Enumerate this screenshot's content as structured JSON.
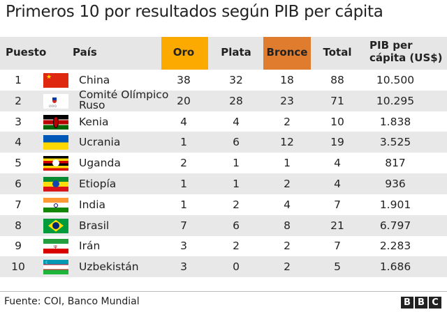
{
  "title": "Primeros 10 por resultados según PIB per cápita",
  "headers": {
    "puesto": "Puesto",
    "pais": "País",
    "oro": "Oro",
    "plata": "Plata",
    "bronce": "Bronce",
    "total": "Total",
    "pib1": "PIB per",
    "pib2": "cápita (US$)"
  },
  "colors": {
    "oro": "#fdaa00",
    "bronce": "#e07c2d"
  },
  "rows": [
    {
      "rank": "1",
      "country": "China",
      "flag": "china-flag",
      "oro": "38",
      "plata": "32",
      "bronce": "18",
      "total": "88",
      "pib": "10.500"
    },
    {
      "rank": "2",
      "country": "Comité Olímpico",
      "country2": "Ruso",
      "flag": "roc-emblem",
      "oro": "20",
      "plata": "28",
      "bronce": "23",
      "total": "71",
      "pib": "10.295"
    },
    {
      "rank": "3",
      "country": "Kenia",
      "flag": "kenya-flag",
      "oro": "4",
      "plata": "4",
      "bronce": "2",
      "total": "10",
      "pib": "1.838"
    },
    {
      "rank": "4",
      "country": "Ucrania",
      "flag": "ukraine-flag",
      "oro": "1",
      "plata": "6",
      "bronce": "12",
      "total": "19",
      "pib": "3.525"
    },
    {
      "rank": "5",
      "country": "Uganda",
      "flag": "uganda-flag",
      "oro": "2",
      "plata": "1",
      "bronce": "1",
      "total": "4",
      "pib": "817"
    },
    {
      "rank": "6",
      "country": "Etiopía",
      "flag": "ethiopia-flag",
      "oro": "1",
      "plata": "1",
      "bronce": "2",
      "total": "4",
      "pib": "936"
    },
    {
      "rank": "7",
      "country": "India",
      "flag": "india-flag",
      "oro": "1",
      "plata": "2",
      "bronce": "4",
      "total": "7",
      "pib": "1.901"
    },
    {
      "rank": "8",
      "country": "Brasil",
      "flag": "brazil-flag",
      "oro": "7",
      "plata": "6",
      "bronce": "8",
      "total": "21",
      "pib": "6.797"
    },
    {
      "rank": "9",
      "country": "Irán",
      "flag": "iran-flag",
      "oro": "3",
      "plata": "2",
      "bronce": "2",
      "total": "7",
      "pib": "2.283"
    },
    {
      "rank": "10",
      "country": "Uzbekistán",
      "flag": "uzbekistan-flag",
      "oro": "3",
      "plata": "0",
      "bronce": "2",
      "total": "5",
      "pib": "1.686"
    }
  ],
  "footer": {
    "source": "Fuente: COI, Banco Mundial",
    "logo": [
      "B",
      "B",
      "C"
    ]
  }
}
